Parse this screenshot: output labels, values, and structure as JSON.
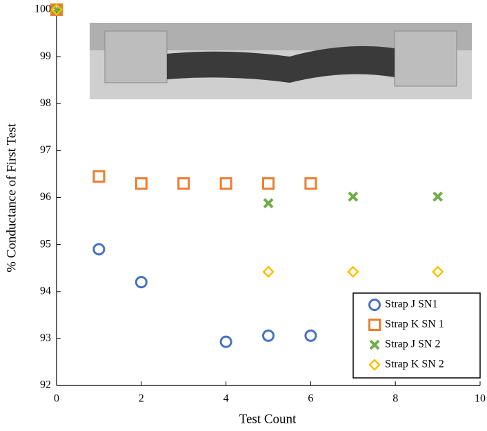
{
  "chart_data": {
    "type": "scatter",
    "xlabel": "Test Count",
    "ylabel": "% Conductance of First Test",
    "xlim": [
      0,
      10
    ],
    "xticks": [
      0,
      2,
      4,
      6,
      8,
      10
    ],
    "ylim": [
      92,
      100
    ],
    "yticks": [
      92,
      93,
      94,
      95,
      96,
      97,
      98,
      99,
      100
    ],
    "legend": "lower right",
    "series": [
      {
        "name": "Strap J SN1",
        "color": "#4472c4",
        "marker": "circle",
        "x": [
          0,
          1,
          2,
          4,
          5,
          6
        ],
        "values": [
          100,
          94.9,
          94.2,
          92.93,
          93.06,
          93.06
        ]
      },
      {
        "name": "Strap K SN 1",
        "color": "#ed7d31",
        "marker": "square",
        "x": [
          0,
          1,
          2,
          3,
          4,
          5,
          6
        ],
        "values": [
          100,
          96.45,
          96.3,
          96.3,
          96.3,
          96.3,
          96.3
        ]
      },
      {
        "name": "Strap J SN 2",
        "color": "#70ad47",
        "marker": "x",
        "x": [
          0,
          5,
          7,
          9
        ],
        "values": [
          100,
          95.88,
          96.02,
          96.02
        ]
      },
      {
        "name": "Strap K SN 2",
        "color": "#ffc000",
        "marker": "diamond",
        "x": [
          0,
          5,
          7,
          9
        ],
        "values": [
          100,
          94.42,
          94.42,
          94.42
        ]
      }
    ]
  }
}
